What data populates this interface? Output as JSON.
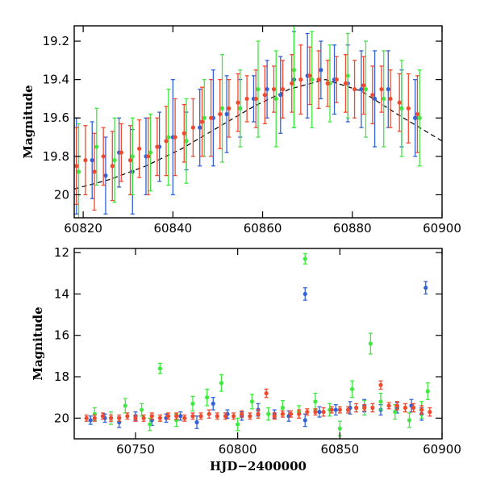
{
  "chart_data": [
    {
      "type": "scatter",
      "title": "",
      "xlabel": "",
      "ylabel": "Magnitude",
      "xlim": [
        60818,
        60900
      ],
      "ylim": [
        20.12,
        19.12
      ],
      "y_inverted": true,
      "xticks": [
        60820,
        60840,
        60860,
        60880,
        60900
      ],
      "yticks": [
        19.2,
        19.4,
        19.6,
        19.8,
        20
      ],
      "ytick_labels": [
        "19.2",
        "19.4",
        "19.6",
        "19.8",
        "20"
      ],
      "grid": false,
      "legend": "none",
      "series": [
        {
          "color": "#3163d6",
          "x": [
            60818.5,
            60822.0,
            60825.0,
            60828.0,
            60831.0,
            60834.0,
            60837.0,
            60840.0,
            60843.0,
            60846.0,
            60849.0,
            60852.0,
            60855.0,
            60858.0,
            60861.0,
            60864.0,
            60867.0,
            60870.0,
            60873.0,
            60876.0,
            60879.0,
            60882.0,
            60885.0,
            60888.0,
            60891.0,
            60894.0
          ],
          "y": [
            19.85,
            19.82,
            19.9,
            19.78,
            19.88,
            19.8,
            19.75,
            19.7,
            19.72,
            19.65,
            19.6,
            19.58,
            19.55,
            19.5,
            19.45,
            19.48,
            19.4,
            19.38,
            19.35,
            19.4,
            19.42,
            19.45,
            19.5,
            19.45,
            19.55,
            19.6
          ],
          "yerr": [
            0.25,
            0.2,
            0.2,
            0.18,
            0.22,
            0.2,
            0.18,
            0.3,
            0.15,
            0.2,
            0.25,
            0.2,
            0.15,
            0.12,
            0.15,
            0.2,
            0.25,
            0.22,
            0.15,
            0.18,
            0.2,
            0.2,
            0.25,
            0.2,
            0.2,
            0.2
          ]
        },
        {
          "color": "#41e841",
          "x": [
            60819.0,
            60823.0,
            60827.0,
            60831.0,
            60835.0,
            60839.0,
            60843.0,
            60847.0,
            60851.0,
            60855.0,
            60859.0,
            60863.0,
            60867.0,
            60871.0,
            60875.0,
            60879.0,
            60883.0,
            60887.0,
            60891.0,
            60895.0
          ],
          "y": [
            19.88,
            19.75,
            19.82,
            19.8,
            19.78,
            19.7,
            19.72,
            19.6,
            19.55,
            19.55,
            19.45,
            19.5,
            19.35,
            19.4,
            19.42,
            19.38,
            19.45,
            19.5,
            19.55,
            19.6
          ],
          "yerr": [
            0.25,
            0.2,
            0.22,
            0.2,
            0.2,
            0.25,
            0.22,
            0.2,
            0.28,
            0.2,
            0.25,
            0.25,
            0.3,
            0.25,
            0.2,
            0.22,
            0.25,
            0.25,
            0.25,
            0.25
          ]
        },
        {
          "color": "#f04a2e",
          "x": [
            60818.5,
            60820.5,
            60822.5,
            60824.5,
            60826.5,
            60828.5,
            60830.5,
            60832.5,
            60834.5,
            60836.5,
            60838.5,
            60840.5,
            60842.5,
            60844.5,
            60846.5,
            60848.5,
            60850.5,
            60852.5,
            60854.5,
            60856.5,
            60858.5,
            60860.5,
            60862.5,
            60864.5,
            60866.5,
            60868.5,
            60870.5,
            60872.5,
            60874.5,
            60876.5,
            60878.5,
            60880.5,
            60882.5,
            60884.5,
            60886.5,
            60888.5,
            60890.5,
            60892.5,
            60894.5
          ],
          "y": [
            19.85,
            19.82,
            19.88,
            19.8,
            19.85,
            19.78,
            19.82,
            19.76,
            19.8,
            19.75,
            19.72,
            19.7,
            19.68,
            19.65,
            19.62,
            19.6,
            19.58,
            19.55,
            19.52,
            19.5,
            19.5,
            19.48,
            19.45,
            19.45,
            19.42,
            19.4,
            19.38,
            19.4,
            19.42,
            19.4,
            19.42,
            19.45,
            19.43,
            19.48,
            19.45,
            19.5,
            19.52,
            19.55,
            19.58
          ],
          "yerr": [
            0.2,
            0.18,
            0.2,
            0.15,
            0.18,
            0.15,
            0.18,
            0.15,
            0.2,
            0.15,
            0.18,
            0.2,
            0.15,
            0.15,
            0.18,
            0.2,
            0.18,
            0.15,
            0.15,
            0.12,
            0.15,
            0.15,
            0.12,
            0.15,
            0.15,
            0.18,
            0.15,
            0.15,
            0.12,
            0.12,
            0.15,
            0.15,
            0.15,
            0.15,
            0.12,
            0.15,
            0.15,
            0.18,
            0.2
          ]
        }
      ],
      "model_curve": {
        "color": "#000000",
        "style": "dashed",
        "x": [
          60818,
          60826,
          60834,
          60842,
          60850,
          60858,
          60866,
          60874,
          60882,
          60890,
          60900
        ],
        "y": [
          19.97,
          19.92,
          19.85,
          19.76,
          19.65,
          19.54,
          19.45,
          19.4,
          19.46,
          19.58,
          19.72
        ]
      }
    },
    {
      "type": "scatter",
      "title": "",
      "xlabel": "HJD−2400000",
      "ylabel": "Magnitude",
      "xlim": [
        60720,
        60900
      ],
      "ylim": [
        21.0,
        11.8
      ],
      "y_inverted": true,
      "xticks": [
        60750,
        60800,
        60850,
        60900
      ],
      "yticks": [
        12,
        14,
        16,
        18,
        20
      ],
      "ytick_labels": [
        "12",
        "14",
        "16",
        "18",
        "20"
      ],
      "grid": false,
      "legend": "none",
      "series": [
        {
          "color": "#3163d6",
          "x": [
            60728,
            60735,
            60742,
            60750,
            60758,
            60765,
            60772,
            60780,
            60788,
            60795,
            60802,
            60810,
            60818,
            60825,
            60833,
            60833,
            60840,
            60848,
            60855,
            60862,
            60870,
            60878,
            60885,
            60890,
            60892
          ],
          "y": [
            20.1,
            20.0,
            20.2,
            19.9,
            20.1,
            20.0,
            19.9,
            20.2,
            19.3,
            19.8,
            19.9,
            19.6,
            19.8,
            19.9,
            20.1,
            14.0,
            19.7,
            19.6,
            19.5,
            19.4,
            19.6,
            19.5,
            19.4,
            19.8,
            13.7
          ],
          "yerr": [
            0.2,
            0.2,
            0.25,
            0.2,
            0.25,
            0.2,
            0.2,
            0.3,
            0.3,
            0.2,
            0.2,
            0.3,
            0.2,
            0.25,
            0.3,
            0.3,
            0.25,
            0.25,
            0.3,
            0.3,
            0.25,
            0.25,
            0.3,
            0.3,
            0.3
          ]
        },
        {
          "color": "#41e841",
          "x": [
            60730,
            60738,
            60745,
            60753,
            60757,
            60762,
            60770,
            60778,
            60785,
            60792,
            60800,
            60807,
            60815,
            60822,
            60830,
            60833,
            60838,
            60845,
            60850,
            60856,
            60862,
            60865,
            60870,
            60877,
            60884,
            60890,
            60893
          ],
          "y": [
            19.8,
            20.0,
            19.4,
            19.6,
            20.3,
            17.6,
            20.1,
            19.3,
            19.0,
            18.3,
            20.3,
            19.2,
            19.8,
            19.5,
            19.7,
            12.3,
            19.2,
            19.6,
            20.5,
            18.6,
            19.5,
            16.4,
            19.2,
            19.7,
            20.1,
            19.6,
            18.7
          ],
          "yerr": [
            0.3,
            0.3,
            0.35,
            0.3,
            0.3,
            0.25,
            0.3,
            0.35,
            0.4,
            0.4,
            0.3,
            0.35,
            0.3,
            0.35,
            0.3,
            0.25,
            0.4,
            0.3,
            0.35,
            0.4,
            0.35,
            0.5,
            0.4,
            0.35,
            0.35,
            0.4,
            0.4
          ]
        },
        {
          "color": "#f04a2e",
          "x": [
            60726,
            60730,
            60734,
            60738,
            60742,
            60746,
            60750,
            60754,
            60758,
            60762,
            60766,
            60770,
            60774,
            60778,
            60782,
            60786,
            60790,
            60794,
            60798,
            60802,
            60806,
            60810,
            60814,
            60818,
            60822,
            60826,
            60830,
            60834,
            60838,
            60842,
            60846,
            60850,
            60854,
            60858,
            60862,
            60866,
            60870,
            60874,
            60878,
            60882,
            60886,
            60890,
            60894
          ],
          "y": [
            20.0,
            20.0,
            19.9,
            20.0,
            20.0,
            19.9,
            20.0,
            20.0,
            19.9,
            20.0,
            19.9,
            19.9,
            20.0,
            19.9,
            19.9,
            19.8,
            19.9,
            19.9,
            19.9,
            19.8,
            19.9,
            19.8,
            18.8,
            19.9,
            19.8,
            19.8,
            19.8,
            19.7,
            19.7,
            19.7,
            19.6,
            19.6,
            19.6,
            19.5,
            19.5,
            19.5,
            18.4,
            19.4,
            19.4,
            19.5,
            19.5,
            19.6,
            19.7
          ],
          "yerr": [
            0.15,
            0.15,
            0.15,
            0.15,
            0.15,
            0.15,
            0.15,
            0.15,
            0.15,
            0.15,
            0.15,
            0.15,
            0.15,
            0.15,
            0.15,
            0.2,
            0.15,
            0.15,
            0.15,
            0.15,
            0.15,
            0.2,
            0.2,
            0.15,
            0.15,
            0.15,
            0.2,
            0.15,
            0.15,
            0.2,
            0.15,
            0.15,
            0.15,
            0.2,
            0.15,
            0.2,
            0.2,
            0.15,
            0.2,
            0.2,
            0.2,
            0.2,
            0.2
          ]
        }
      ]
    }
  ]
}
